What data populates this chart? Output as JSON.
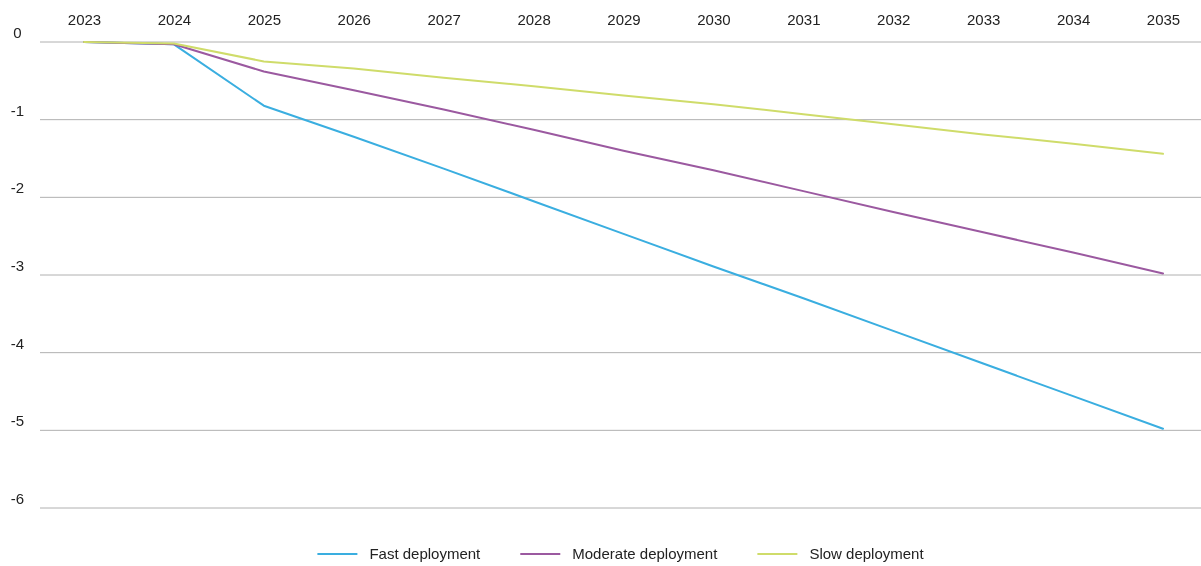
{
  "chart_data": {
    "type": "line",
    "categories": [
      "2023",
      "2024",
      "2025",
      "2026",
      "2027",
      "2028",
      "2029",
      "2030",
      "2031",
      "2032",
      "2033",
      "2034",
      "2035"
    ],
    "series": [
      {
        "name": "Fast deployment",
        "color": "#3aaee0",
        "values": [
          0,
          -0.03,
          -0.82,
          -1.22,
          -1.63,
          -2.05,
          -2.47,
          -2.89,
          -3.3,
          -3.72,
          -4.14,
          -4.56,
          -4.98
        ]
      },
      {
        "name": "Moderate deployment",
        "color": "#9b59a0",
        "values": [
          0,
          -0.03,
          -0.38,
          -0.62,
          -0.87,
          -1.13,
          -1.4,
          -1.65,
          -1.92,
          -2.19,
          -2.45,
          -2.71,
          -2.98
        ]
      },
      {
        "name": "Slow deployment",
        "color": "#cfdc6a",
        "values": [
          0,
          -0.02,
          -0.25,
          -0.34,
          -0.46,
          -0.57,
          -0.69,
          -0.8,
          -0.93,
          -1.06,
          -1.19,
          -1.31,
          -1.44
        ]
      }
    ],
    "ylim": [
      -6,
      0
    ],
    "yticks": [
      0,
      -1,
      -2,
      -3,
      -4,
      -5,
      -6
    ],
    "grid": "y",
    "legend": "bottom",
    "marker": "none",
    "line_style": "solid"
  }
}
